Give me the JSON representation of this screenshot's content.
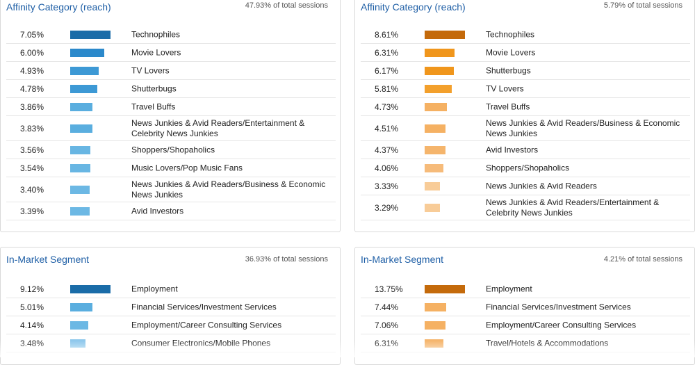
{
  "panels": [
    {
      "title": "Affinity Category (reach)",
      "share": "47.93% of total sessions",
      "rows": [
        {
          "pct": "7.05%",
          "label": "Technophiles",
          "fill": 1.0,
          "color": "#1a6ca8"
        },
        {
          "pct": "6.00%",
          "label": "Movie Lovers",
          "fill": 0.851,
          "color": "#2b89cb"
        },
        {
          "pct": "4.93%",
          "label": "TV Lovers",
          "fill": 0.699,
          "color": "#3d99d5"
        },
        {
          "pct": "4.78%",
          "label": "Shutterbugs",
          "fill": 0.678,
          "color": "#3d99d5"
        },
        {
          "pct": "3.86%",
          "label": "Travel Buffs",
          "fill": 0.548,
          "color": "#5aaedf"
        },
        {
          "pct": "3.83%",
          "label": "News Junkies & Avid Readers/Entertainment & Celebrity News Junkies",
          "fill": 0.543,
          "color": "#5aaedf"
        },
        {
          "pct": "3.56%",
          "label": "Shoppers/Shopaholics",
          "fill": 0.505,
          "color": "#68b6e3"
        },
        {
          "pct": "3.54%",
          "label": "Music Lovers/Pop Music Fans",
          "fill": 0.502,
          "color": "#68b6e3"
        },
        {
          "pct": "3.40%",
          "label": "News Junkies & Avid Readers/Business & Economic News Junkies",
          "fill": 0.482,
          "color": "#6cb8e4"
        },
        {
          "pct": "3.39%",
          "label": "Avid Investors",
          "fill": 0.481,
          "color": "#6cb8e4"
        }
      ]
    },
    {
      "title": "Affinity Category (reach)",
      "share": "5.79% of total sessions",
      "rows": [
        {
          "pct": "8.61%",
          "label": "Technophiles",
          "fill": 1.0,
          "color": "#c46a0b"
        },
        {
          "pct": "6.31%",
          "label": "Movie Lovers",
          "fill": 0.733,
          "color": "#f0961c"
        },
        {
          "pct": "6.17%",
          "label": "Shutterbugs",
          "fill": 0.717,
          "color": "#f0961c"
        },
        {
          "pct": "5.81%",
          "label": "TV Lovers",
          "fill": 0.675,
          "color": "#f3a02c"
        },
        {
          "pct": "4.73%",
          "label": "Travel Buffs",
          "fill": 0.549,
          "color": "#f5b163"
        },
        {
          "pct": "4.51%",
          "label": "News Junkies & Avid Readers/Business & Economic News Junkies",
          "fill": 0.524,
          "color": "#f5b163"
        },
        {
          "pct": "4.37%",
          "label": "Avid Investors",
          "fill": 0.508,
          "color": "#f5b56c"
        },
        {
          "pct": "4.06%",
          "label": "Shoppers/Shopaholics",
          "fill": 0.472,
          "color": "#f6bb7a"
        },
        {
          "pct": "3.33%",
          "label": "News Junkies & Avid Readers",
          "fill": 0.387,
          "color": "#f8cc98"
        },
        {
          "pct": "3.29%",
          "label": "News Junkies & Avid Readers/Entertainment & Celebrity News Junkies",
          "fill": 0.382,
          "color": "#f8cc98"
        }
      ]
    },
    {
      "title": "In-Market Segment",
      "share": "36.93% of total sessions",
      "rows": [
        {
          "pct": "9.12%",
          "label": "Employment",
          "fill": 1.0,
          "color": "#1a6ca8"
        },
        {
          "pct": "5.01%",
          "label": "Financial Services/Investment Services",
          "fill": 0.549,
          "color": "#5aaedf"
        },
        {
          "pct": "4.14%",
          "label": "Employment/Career Consulting Services",
          "fill": 0.454,
          "color": "#6cb8e4"
        },
        {
          "pct": "3.48%",
          "label": "Consumer Electronics/Mobile Phones",
          "fill": 0.382,
          "color": "#8ec8ec"
        }
      ]
    },
    {
      "title": "In-Market Segment",
      "share": "4.21% of total sessions",
      "rows": [
        {
          "pct": "13.75%",
          "label": "Employment",
          "fill": 1.0,
          "color": "#c46a0b"
        },
        {
          "pct": "7.44%",
          "label": "Financial Services/Investment Services",
          "fill": 0.541,
          "color": "#f5b163"
        },
        {
          "pct": "7.06%",
          "label": "Employment/Career Consulting Services",
          "fill": 0.513,
          "color": "#f5b163"
        },
        {
          "pct": "6.31%",
          "label": "Travel/Hotels & Accommodations",
          "fill": 0.459,
          "color": "#f5b56c"
        }
      ]
    }
  ]
}
